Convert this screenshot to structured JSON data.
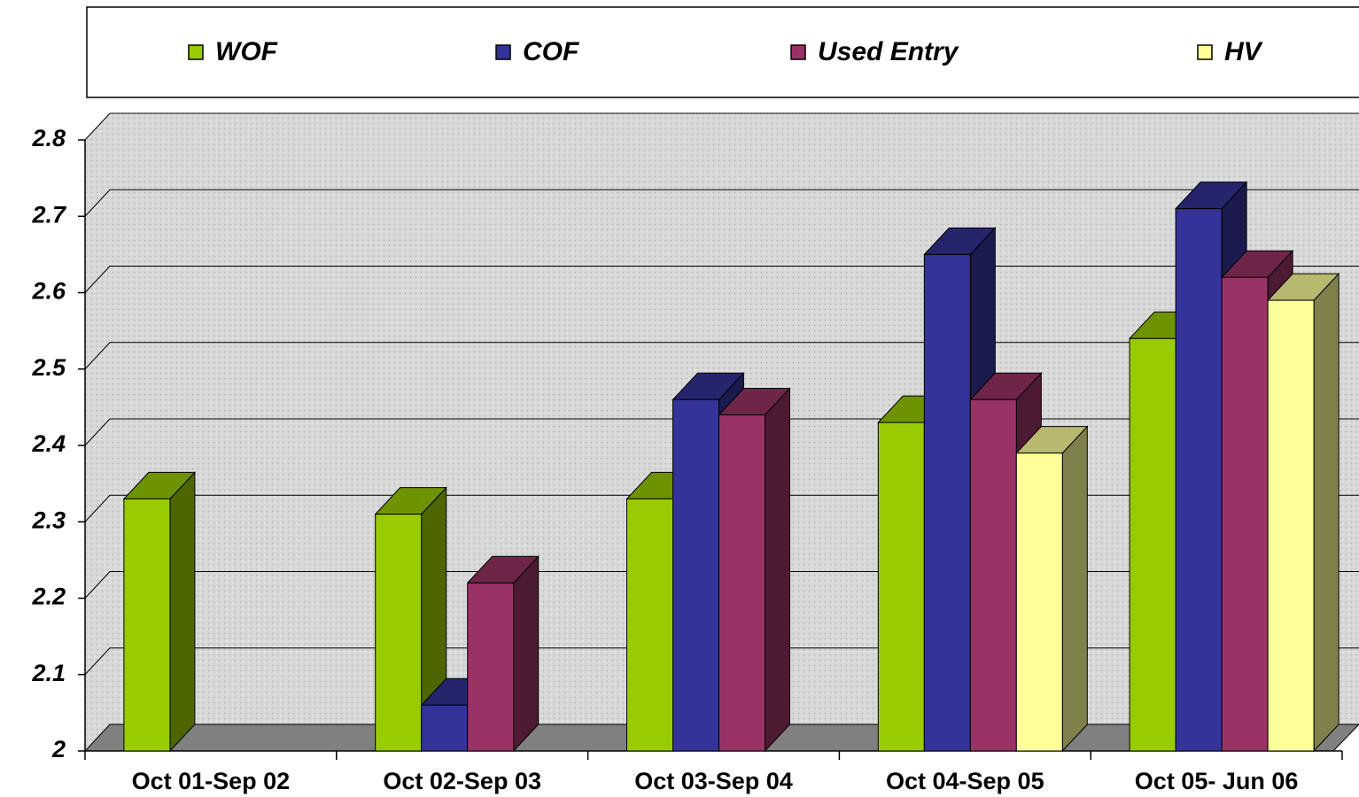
{
  "chart_data": {
    "type": "bar3d",
    "categories": [
      "Oct 01-Sep 02",
      "Oct 02-Sep 03",
      "Oct 03-Sep 04",
      "Oct 04-Sep 05",
      "Oct 05- Jun 06"
    ],
    "series": [
      {
        "name": "WOF",
        "color": "#99cc00",
        "values": [
          2.33,
          2.31,
          2.33,
          2.43,
          2.54
        ]
      },
      {
        "name": "COF",
        "color": "#333399",
        "values": [
          null,
          2.06,
          2.46,
          2.65,
          2.71
        ]
      },
      {
        "name": "Used Entry",
        "color": "#993366",
        "values": [
          null,
          2.22,
          2.44,
          2.46,
          2.62
        ]
      },
      {
        "name": "HV",
        "color": "#ffff99",
        "values": [
          null,
          null,
          null,
          2.39,
          2.59
        ]
      }
    ],
    "ylim": [
      2,
      2.8
    ],
    "yticks": [
      2,
      2.1,
      2.2,
      2.3,
      2.4,
      2.5,
      2.6,
      2.7,
      2.8
    ],
    "grid": true
  }
}
